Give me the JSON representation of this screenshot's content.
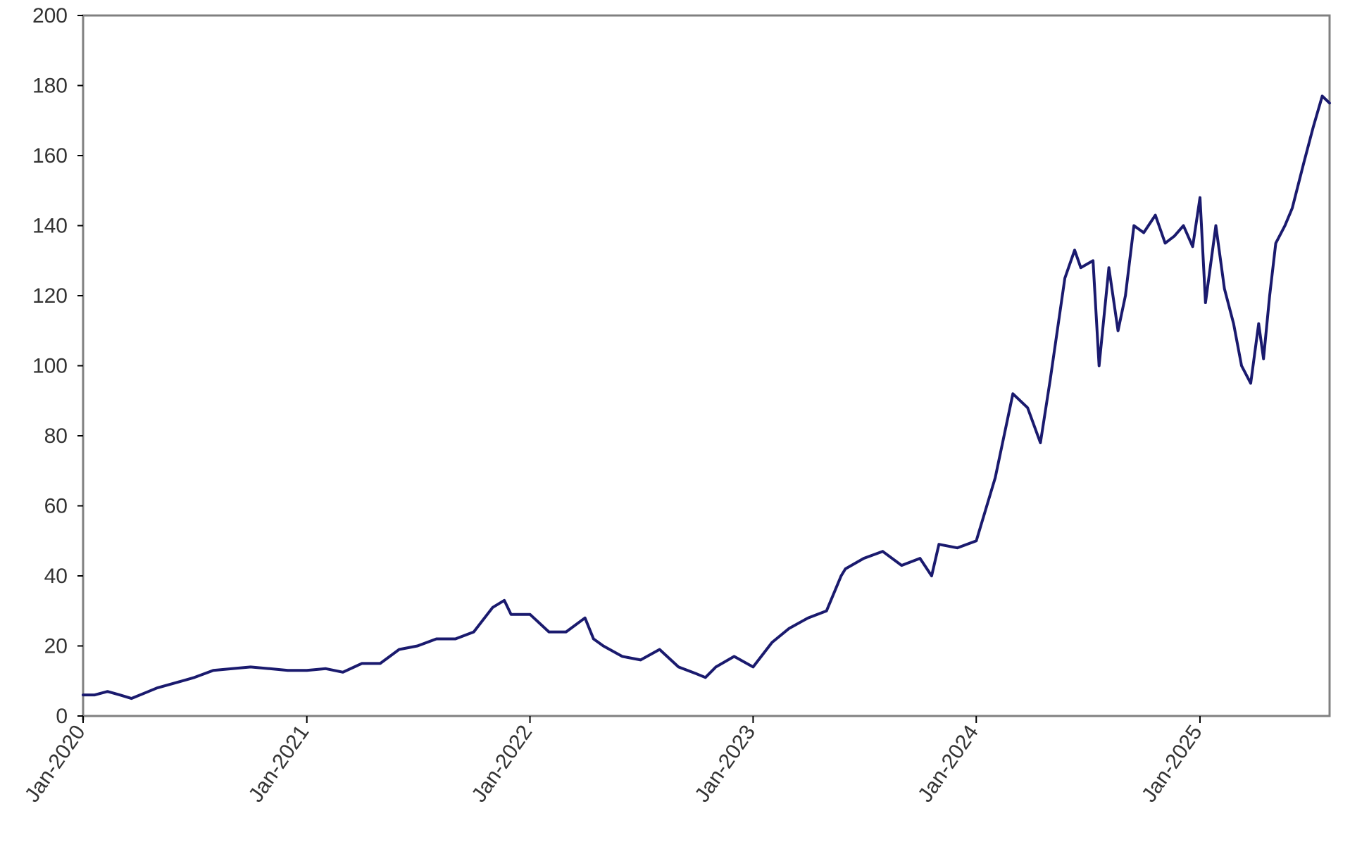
{
  "chart_data": {
    "type": "line",
    "title": "",
    "xlabel": "",
    "ylabel": "",
    "ylim": [
      0,
      200
    ],
    "y_ticks": [
      "0",
      "20",
      "40",
      "60",
      "80",
      "100",
      "120",
      "140",
      "160",
      "180",
      "200"
    ],
    "x_ticks": [
      "Jan-2020",
      "Jan-2021",
      "Jan-2022",
      "Jan-2023",
      "Jan-2024",
      "Jan-2025"
    ],
    "x_tick_dates": [
      "2020-01-01",
      "2021-01-01",
      "2022-01-01",
      "2023-01-01",
      "2024-01-01",
      "2025-01-01"
    ],
    "xlim": [
      "2020-01-01",
      "2025-08-01"
    ],
    "grid": "horizontal",
    "legend": "none",
    "colors": {
      "line": "#1a1a6e",
      "grid": "#000000",
      "axis": "#808080",
      "background": "#ffffff"
    },
    "series": [
      {
        "x": [
          "2020-01-01",
          "2020-01-20",
          "2020-02-10",
          "2020-03-01",
          "2020-03-20",
          "2020-04-10",
          "2020-05-01",
          "2020-06-01",
          "2020-07-01",
          "2020-08-01",
          "2020-09-01",
          "2020-10-01",
          "2020-11-01",
          "2020-12-01",
          "2021-01-01",
          "2021-02-01",
          "2021-03-01",
          "2021-04-01",
          "2021-05-01",
          "2021-06-01",
          "2021-07-01",
          "2021-08-01",
          "2021-09-01",
          "2021-10-01",
          "2021-11-01",
          "2021-11-20",
          "2021-12-01",
          "2022-01-01",
          "2022-02-01",
          "2022-03-01",
          "2022-04-01",
          "2022-04-15",
          "2022-05-01",
          "2022-06-01",
          "2022-07-01",
          "2022-08-01",
          "2022-09-01",
          "2022-10-01",
          "2022-10-15",
          "2022-11-01",
          "2022-12-01",
          "2023-01-01",
          "2023-02-01",
          "2023-03-01",
          "2023-04-01",
          "2023-05-01",
          "2023-05-25",
          "2023-06-01",
          "2023-07-01",
          "2023-08-01",
          "2023-09-01",
          "2023-10-01",
          "2023-10-20",
          "2023-11-01",
          "2023-12-01",
          "2024-01-01",
          "2024-02-01",
          "2024-03-01",
          "2024-03-25",
          "2024-04-15",
          "2024-05-01",
          "2024-05-25",
          "2024-06-10",
          "2024-06-20",
          "2024-07-10",
          "2024-07-20",
          "2024-08-05",
          "2024-08-20",
          "2024-09-01",
          "2024-09-15",
          "2024-10-01",
          "2024-10-20",
          "2024-11-05",
          "2024-11-20",
          "2024-12-05",
          "2024-12-20",
          "2025-01-01",
          "2025-01-10",
          "2025-01-27",
          "2025-02-10",
          "2025-02-25",
          "2025-03-10",
          "2025-03-25",
          "2025-04-07",
          "2025-04-15",
          "2025-04-25",
          "2025-05-05",
          "2025-05-20",
          "2025-06-01",
          "2025-06-20",
          "2025-07-05",
          "2025-07-20",
          "2025-08-01"
        ],
        "values": [
          6,
          6,
          7,
          6,
          5,
          6.5,
          8,
          9.5,
          11,
          13,
          13.5,
          14,
          13.5,
          13,
          13,
          13.5,
          12.5,
          15,
          15,
          19,
          20,
          22,
          22,
          24,
          31,
          33,
          29,
          29,
          24,
          24,
          28,
          22,
          20,
          17,
          16,
          19,
          14,
          12,
          11,
          14,
          17,
          14,
          21,
          25,
          28,
          30,
          40,
          42,
          45,
          47,
          43,
          45,
          40,
          49,
          48,
          50,
          68,
          92,
          88,
          78,
          96,
          125,
          133,
          128,
          130,
          100,
          128,
          110,
          120,
          140,
          138,
          143,
          135,
          137,
          140,
          134,
          148,
          118,
          140,
          122,
          112,
          100,
          95,
          112,
          102,
          120,
          135,
          140,
          145,
          158,
          168,
          177,
          175
        ]
      }
    ]
  }
}
